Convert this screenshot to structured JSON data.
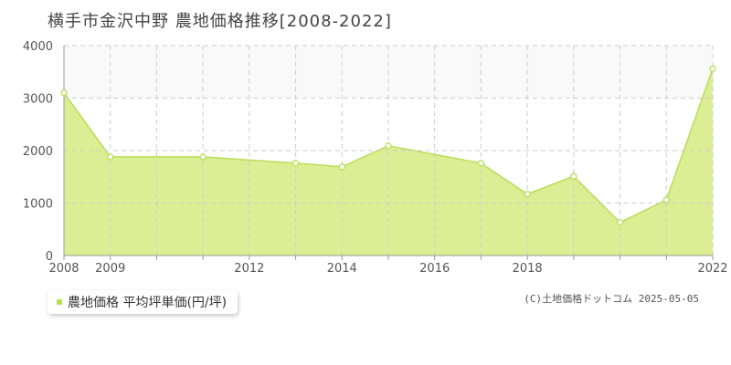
{
  "header": {
    "title": "横手市金沢中野 農地価格推移[2008-2022]"
  },
  "legend": {
    "label": "農地価格 平均坪単価(円/坪)"
  },
  "footer": {
    "copyright": "(C)土地価格ドットコム 2025-05-05"
  },
  "colors": {
    "fill": "#dcee94",
    "line": "#b9dd55",
    "band": "#f9f9f9",
    "grid": "#cccccc",
    "axis": "#999999"
  },
  "chart_data": {
    "type": "area",
    "title": "横手市金沢中野 農地価格推移[2008-2022]",
    "xlabel": "",
    "ylabel": "",
    "x": [
      2008,
      2009,
      2010,
      2011,
      2012,
      2013,
      2014,
      2015,
      2016,
      2017,
      2018,
      2019,
      2020,
      2021,
      2022
    ],
    "series": [
      {
        "name": "農地価格 平均坪単価(円/坪)",
        "values": [
          3100,
          1880,
          null,
          1880,
          null,
          1760,
          1690,
          2090,
          null,
          1760,
          1170,
          1510,
          630,
          1060,
          3560
        ]
      }
    ],
    "xlim": [
      2008,
      2022
    ],
    "ylim": [
      0,
      4000
    ],
    "yticks": [
      0,
      1000,
      2000,
      3000,
      4000
    ],
    "xtick_labels": [
      2008,
      2009,
      2012,
      2014,
      2016,
      2018,
      2022
    ],
    "grid": true,
    "legend_position": "bottom-left"
  }
}
